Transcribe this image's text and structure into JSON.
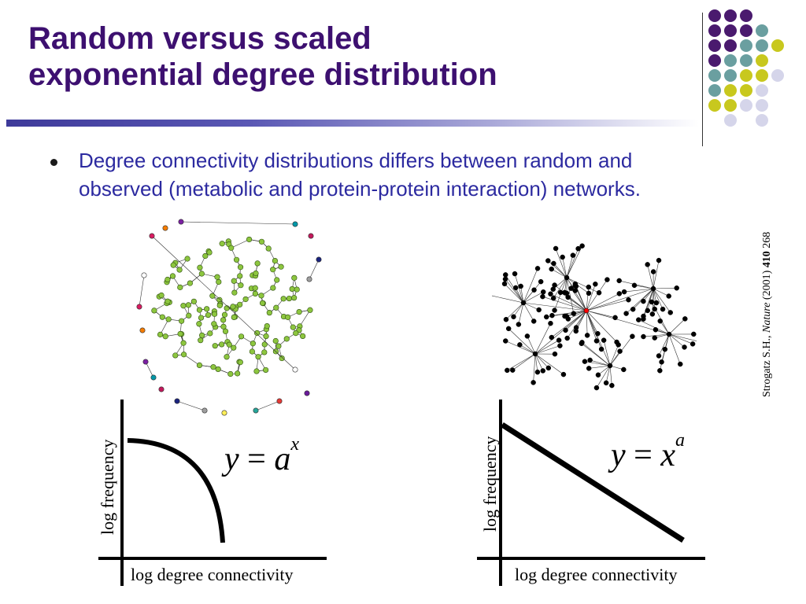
{
  "title": {
    "line1": "Random versus scaled",
    "line2": "exponential degree distribution"
  },
  "bullet": {
    "line1": "Degree connectivity distributions differs between random and",
    "line2": "observed (metabolic and protein-protein interaction) networks."
  },
  "citation": {
    "authors": "Strogatz S.H., ",
    "journal": "Nature",
    "year": " (2001) ",
    "volume": "410",
    "page": " 268"
  },
  "left_plot": {
    "ylabel": "log frequency",
    "xlabel": "log degree connectivity",
    "eq_lhs": "y",
    "eq_op": " = ",
    "eq_base": "a",
    "eq_exp": "x"
  },
  "right_plot": {
    "ylabel": "log frequency",
    "xlabel": "log degree connectivity",
    "eq_lhs": "y",
    "eq_op": " = ",
    "eq_base": "x",
    "eq_exp": "a"
  },
  "colors": {
    "title": "#3d1070",
    "bullet_text": "#2c2aa0",
    "random_nodes": "#8dc63f",
    "scale_free_nodes": "#000000",
    "hub_node": "#ff0000",
    "dot_purple": "#4a1a6e",
    "dot_teal": "#6a9fa0",
    "dot_olive": "#c8c81e",
    "dot_lavender": "#d5d5ea"
  }
}
